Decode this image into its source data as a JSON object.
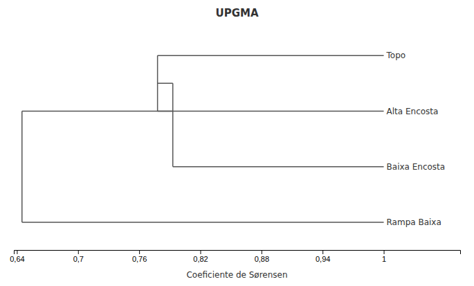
{
  "chart_data": {
    "type": "dendrogram",
    "title": "UPGMA",
    "xlabel": "Coeficiente de Sørensen",
    "categories": [
      "Rampa Baixa",
      "Baixa Encosta",
      "Alta Encosta",
      "Topo"
    ],
    "leaf_value": 1.0,
    "merges": [
      {
        "left": 2,
        "right": 3,
        "value": 0.778
      },
      {
        "left": 1,
        "right": 4,
        "value": 0.793
      },
      {
        "left": 0,
        "right": 5,
        "value": 0.645
      }
    ],
    "xlim": [
      0.637,
      1.075
    ],
    "xticks": [
      {
        "value": 0.64,
        "label": "0,64"
      },
      {
        "value": 0.7,
        "label": "0,7"
      },
      {
        "value": 0.76,
        "label": "0,76"
      },
      {
        "value": 0.82,
        "label": "0,82"
      },
      {
        "value": 0.88,
        "label": "0,88"
      },
      {
        "value": 0.94,
        "label": "0,94"
      },
      1.0
    ]
  }
}
